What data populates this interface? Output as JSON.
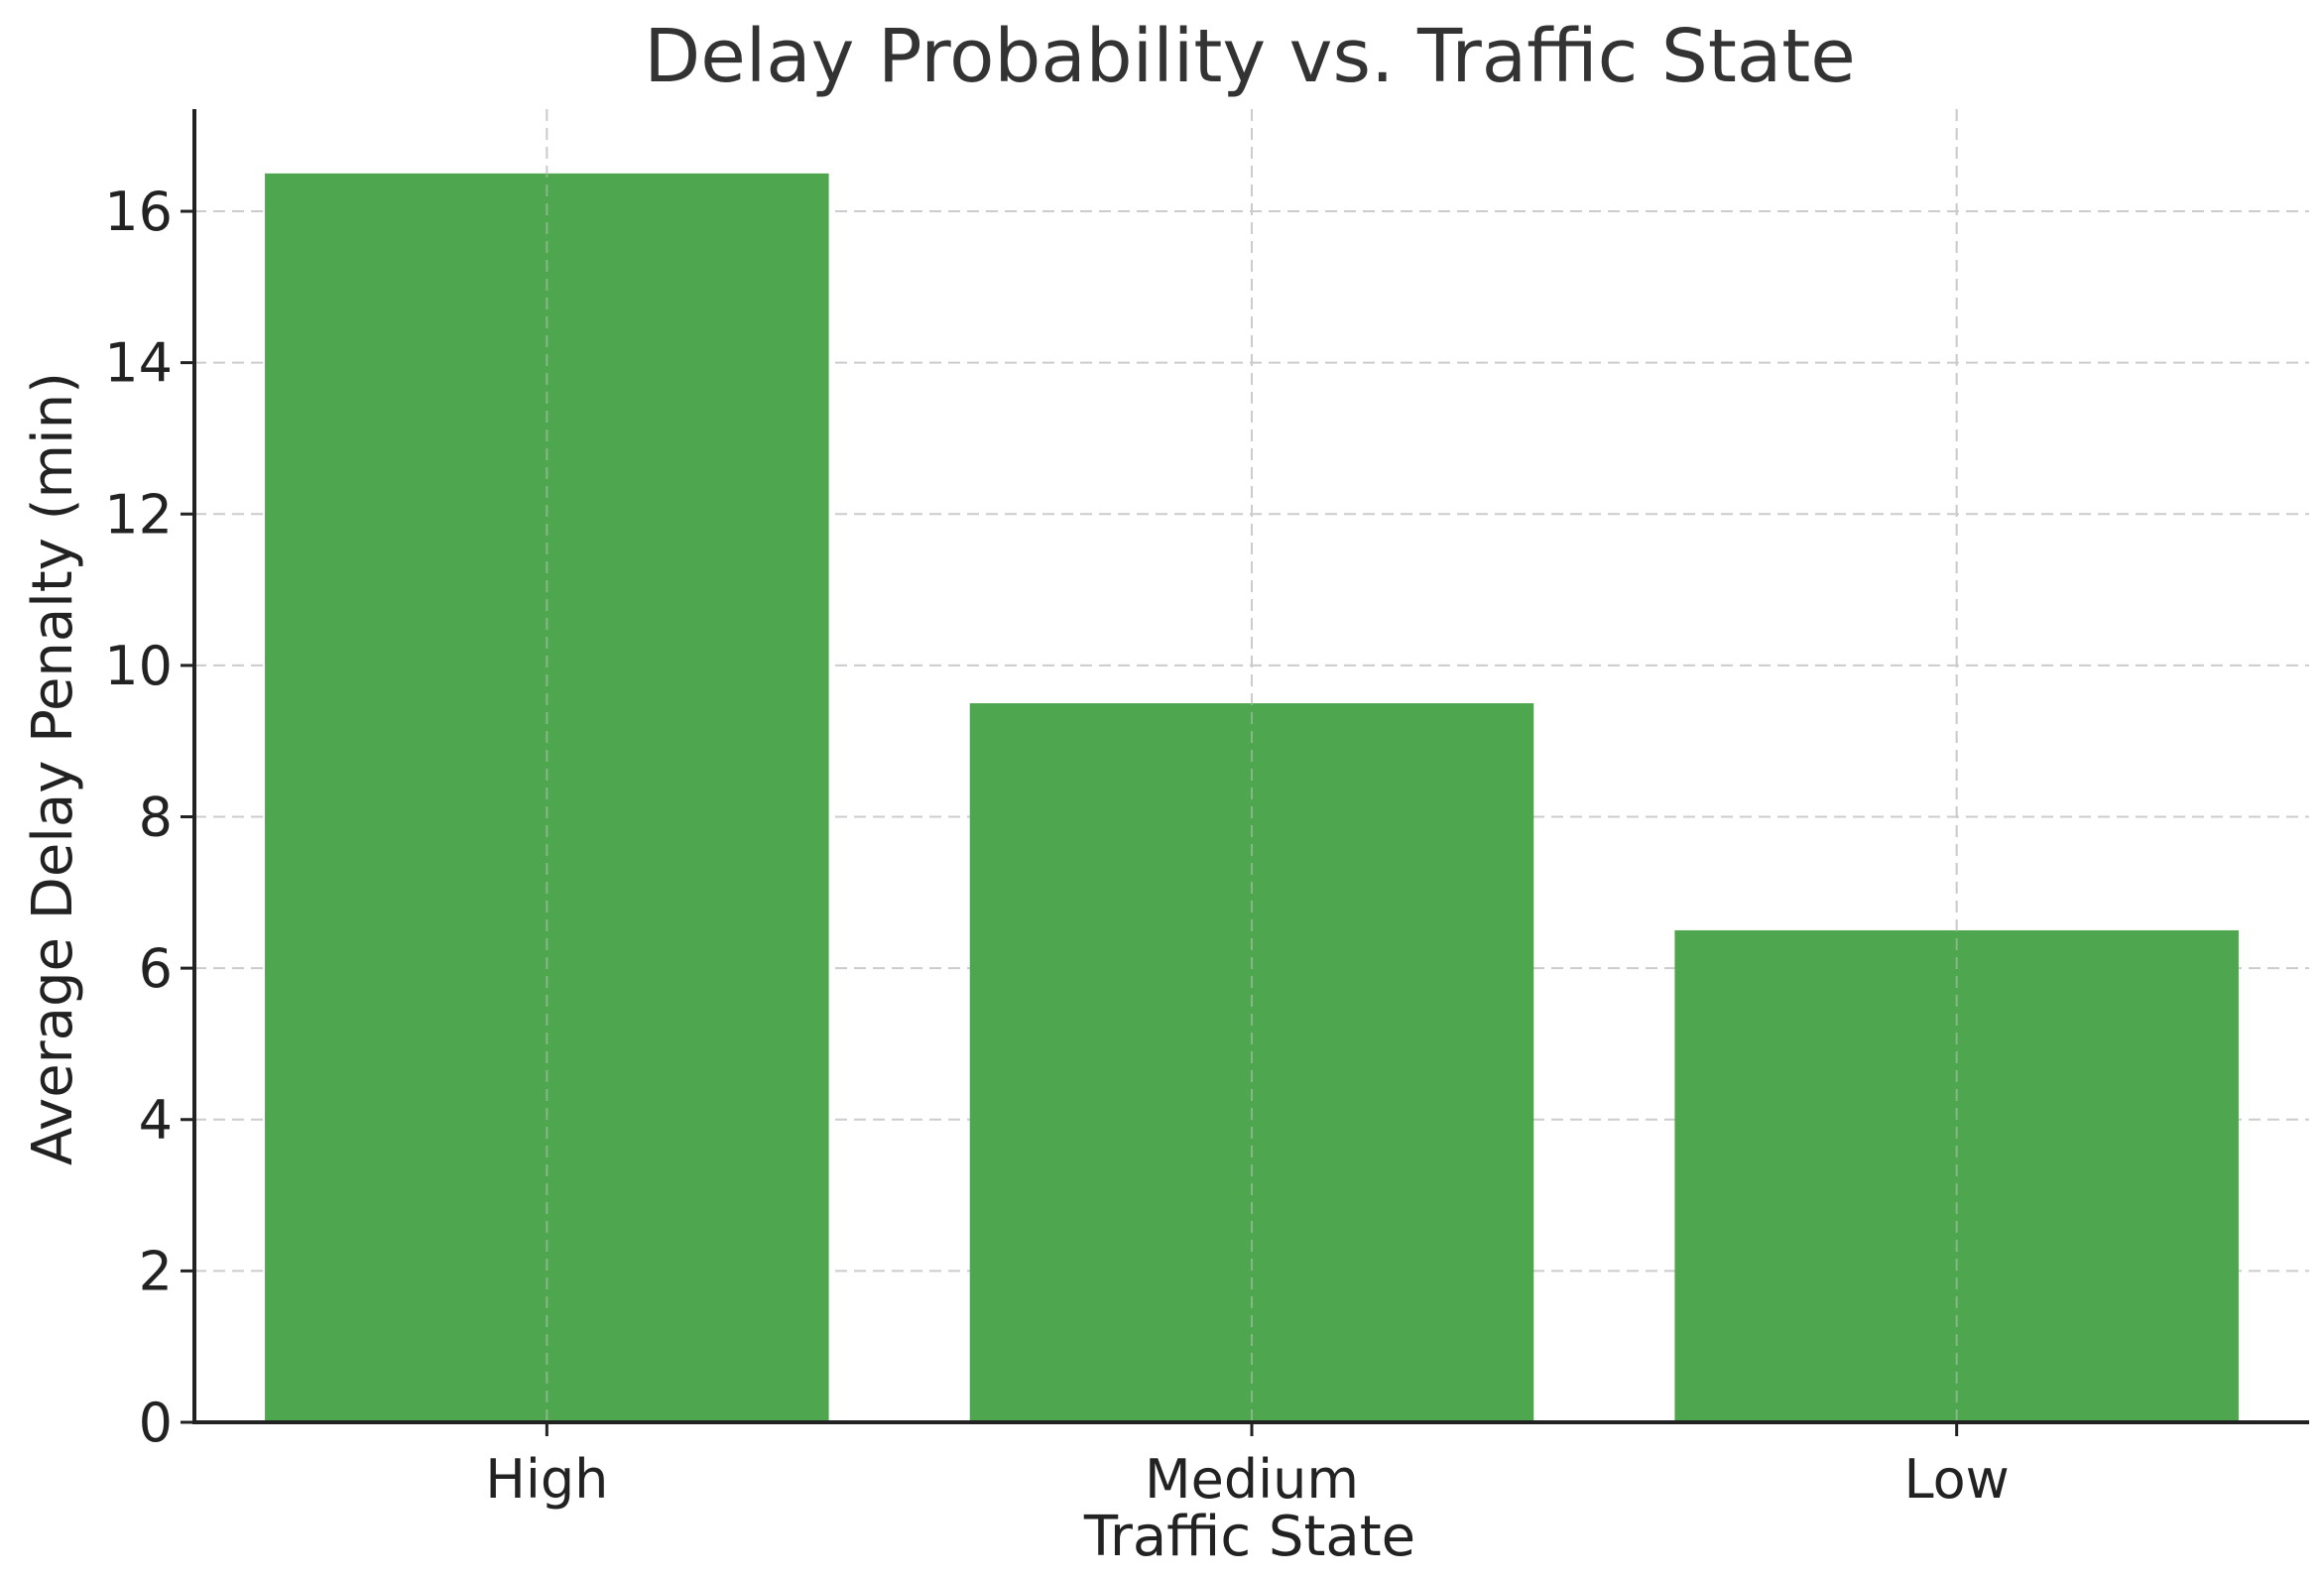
{
  "chart_data": {
    "type": "bar",
    "title": "Delay Probability vs. Traffic State",
    "xlabel": "Traffic State",
    "ylabel": "Average Delay Penalty (min)",
    "categories": [
      "High",
      "Medium",
      "Low"
    ],
    "values": [
      16.5,
      9.5,
      6.5
    ],
    "ylim": [
      0,
      17.35
    ],
    "yticks": [
      0,
      2,
      4,
      6,
      8,
      10,
      12,
      14,
      16
    ],
    "grid": true,
    "bar_color": "#4ea64e"
  }
}
